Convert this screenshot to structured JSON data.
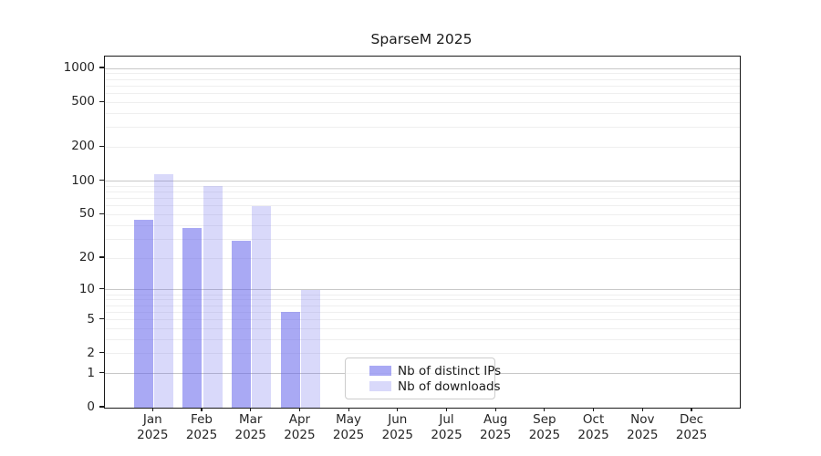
{
  "title": "SparseM 2025",
  "legend": {
    "items": [
      {
        "label": "Nb of distinct IPs"
      },
      {
        "label": "Nb of downloads"
      }
    ]
  },
  "chart_data": {
    "type": "bar",
    "title": "SparseM 2025",
    "categories": [
      "Jan 2025",
      "Feb 2025",
      "Mar 2025",
      "Apr 2025",
      "May 2025",
      "Jun 2025",
      "Jul 2025",
      "Aug 2025",
      "Sep 2025",
      "Oct 2025",
      "Nov 2025",
      "Dec 2025"
    ],
    "series": [
      {
        "name": "Nb of distinct IPs",
        "values": [
          45,
          38,
          29,
          6,
          0,
          0,
          0,
          0,
          0,
          0,
          0,
          0
        ],
        "fill": "rgba(98,98,235,0.55)",
        "approx_hex": "#a8a8f4"
      },
      {
        "name": "Nb of downloads",
        "values": [
          115,
          90,
          60,
          10,
          0,
          0,
          0,
          0,
          0,
          0,
          0,
          0
        ],
        "fill": "rgba(98,98,235,0.24)",
        "approx_hex": "#dadaf9"
      }
    ],
    "xlabel": "",
    "ylabel": "",
    "y_scale": "log10(1+y)",
    "y_ticks": [
      0,
      1,
      2,
      5,
      10,
      20,
      50,
      100,
      200,
      500,
      1000
    ],
    "y_minor_ticks": [
      3,
      4,
      6,
      7,
      8,
      9,
      30,
      40,
      60,
      70,
      80,
      90,
      300,
      400,
      600,
      700,
      800,
      900
    ],
    "ylim": [
      0,
      1280
    ],
    "grid": true,
    "legend_position": "lower center",
    "colors": {
      "major_grid": "#c8c8c8",
      "minor_grid": "#efefef",
      "axis": "#1a1a1a"
    }
  }
}
